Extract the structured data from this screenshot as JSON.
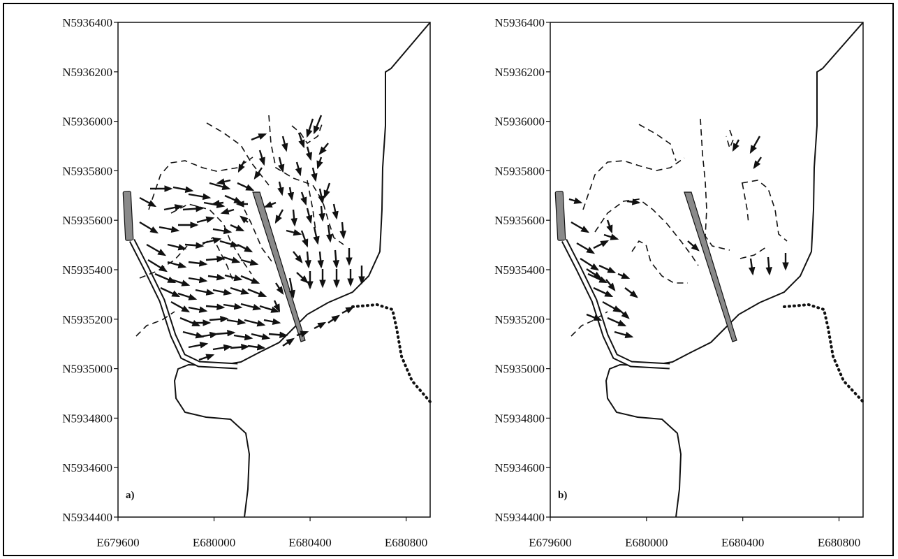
{
  "panels": [
    {
      "id": "a",
      "label": "a)",
      "y_tick_labels": [
        "N5936400",
        "N5936200",
        "N5936000",
        "N5935800",
        "N5935600",
        "N5935400",
        "N5935200",
        "N5935000",
        "N5934800",
        "N5934600",
        "N5934400"
      ],
      "x_tick_labels": [
        "E679600",
        "E680000",
        "E680400",
        "E680800"
      ]
    },
    {
      "id": "b",
      "label": "b)",
      "y_tick_labels": [
        "N5936400",
        "N5936200",
        "N5936000",
        "N5935800",
        "N5935600",
        "N5935400",
        "N5935200",
        "N5935000",
        "N5934800",
        "N5934600",
        "N5934400"
      ],
      "x_tick_labels": [
        "E679600",
        "E680000",
        "E680400",
        "E680800"
      ]
    }
  ],
  "axes": {
    "x_range": [
      679600,
      680900
    ],
    "y_range": [
      5934400,
      5936400
    ],
    "x_ticks": [
      679600,
      680000,
      680400,
      680800
    ],
    "y_ticks": [
      5936400,
      5936200,
      5936000,
      5935800,
      5935600,
      5935400,
      5935200,
      5935000,
      5934800,
      5934600,
      5934400
    ]
  },
  "colors": {
    "ink": "#111111",
    "breakwater": "#8a8a8a"
  }
}
